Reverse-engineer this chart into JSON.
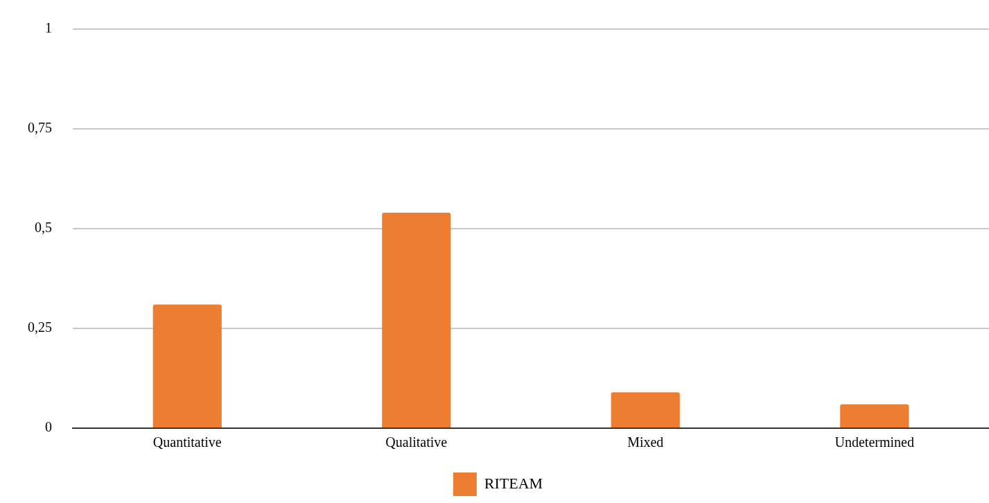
{
  "chart_data": {
    "type": "bar",
    "categories": [
      "Quantitative",
      "Qualitative",
      "Mixed",
      "Undetermined"
    ],
    "series": [
      {
        "name": "RITEAM",
        "color": "#ed7d31",
        "values": [
          0.31,
          0.54,
          0.09,
          0.06
        ]
      }
    ],
    "ylim": [
      0,
      1
    ],
    "yticks": [
      0,
      {
        "value": 0.25,
        "label": "0,25"
      },
      {
        "value": 0.5,
        "label": "0,5"
      },
      {
        "value": 0.75,
        "label": "0,75"
      },
      1
    ],
    "grid": "y",
    "legend": "bottom"
  }
}
